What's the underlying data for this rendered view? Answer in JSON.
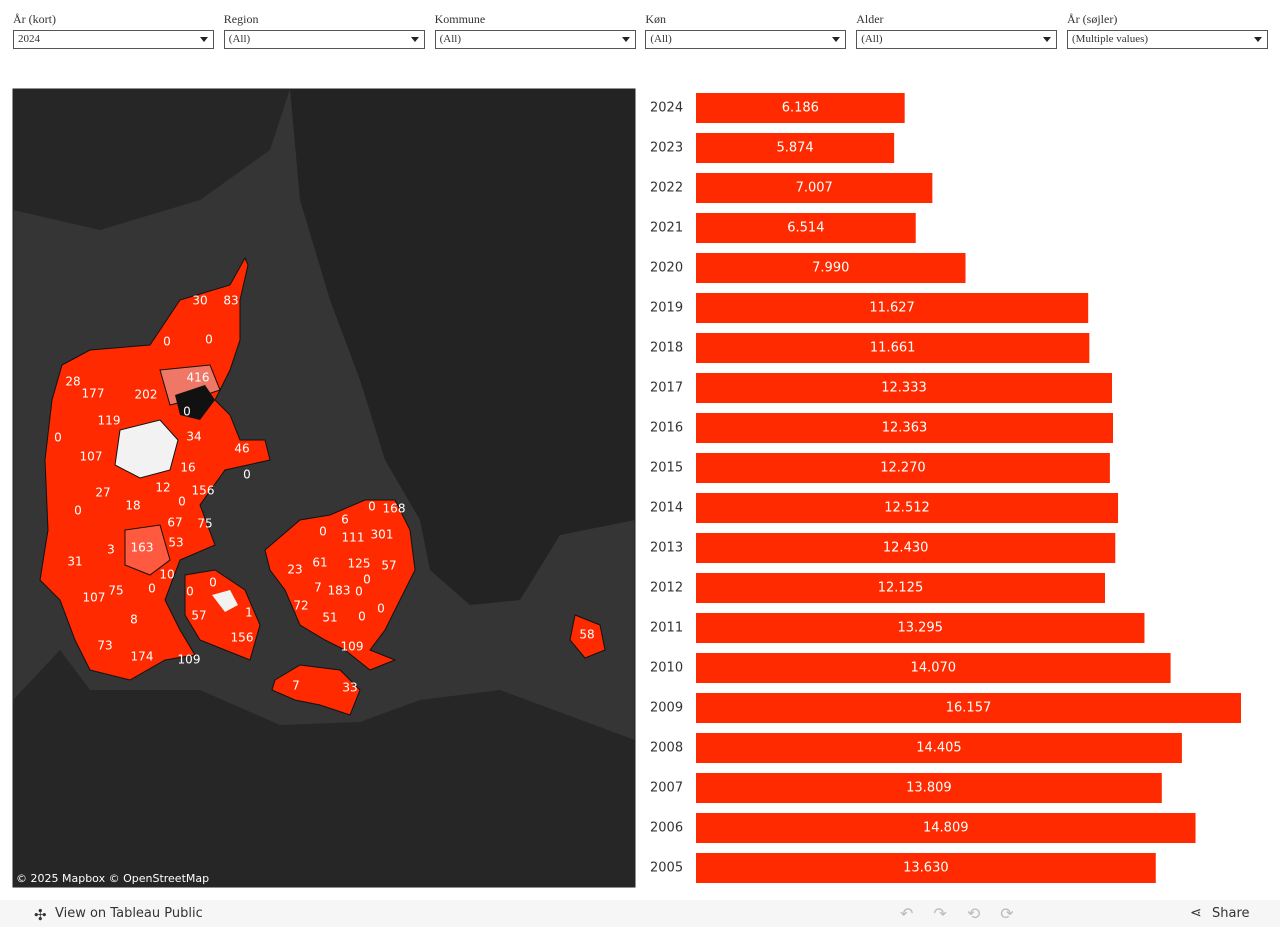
{
  "filters": [
    {
      "label": "År (kort)",
      "value": "2024"
    },
    {
      "label": "Region",
      "value": "(All)"
    },
    {
      "label": "Kommune",
      "value": "(All)"
    },
    {
      "label": "Køn",
      "value": "(All)"
    },
    {
      "label": "Alder",
      "value": "(All)"
    },
    {
      "label": "År (søjler)",
      "value": "(Multiple values)"
    }
  ],
  "map": {
    "attribution": "© 2025 Mapbox © OpenStreetMap",
    "labels": [
      30,
      83,
      0,
      0,
      28,
      177,
      202,
      416,
      0,
      119,
      0,
      34,
      107,
      46,
      16,
      0,
      27,
      12,
      0,
      156,
      0,
      18,
      67,
      75,
      3,
      163,
      53,
      31,
      10,
      0,
      107,
      75,
      0,
      0,
      57,
      1,
      8,
      156,
      73,
      174,
      109,
      6,
      0,
      168,
      0,
      111,
      301,
      125,
      57,
      23,
      61,
      7,
      183,
      0,
      0,
      72,
      51,
      0,
      0,
      109,
      7,
      33,
      58
    ]
  },
  "chart_data": {
    "type": "bar",
    "orientation": "horizontal",
    "categories": [
      "2024",
      "2023",
      "2022",
      "2021",
      "2020",
      "2019",
      "2018",
      "2017",
      "2016",
      "2015",
      "2014",
      "2013",
      "2012",
      "2011",
      "2010",
      "2009",
      "2008",
      "2007",
      "2006",
      "2005"
    ],
    "values": [
      6186,
      5874,
      7007,
      6514,
      7990,
      11627,
      11661,
      12333,
      12363,
      12270,
      12512,
      12430,
      12125,
      13295,
      14070,
      16157,
      14405,
      13809,
      14809,
      13630
    ],
    "value_labels": [
      "6.186",
      "5.874",
      "7.007",
      "6.514",
      "7.990",
      "11.627",
      "11.661",
      "12.333",
      "12.363",
      "12.270",
      "12.512",
      "12.430",
      "12.125",
      "13.295",
      "14.070",
      "16.157",
      "14.405",
      "13.809",
      "14.809",
      "13.630"
    ],
    "color": "#ff2a00"
  },
  "footer": {
    "link": "View on Tableau Public",
    "share": "Share"
  }
}
